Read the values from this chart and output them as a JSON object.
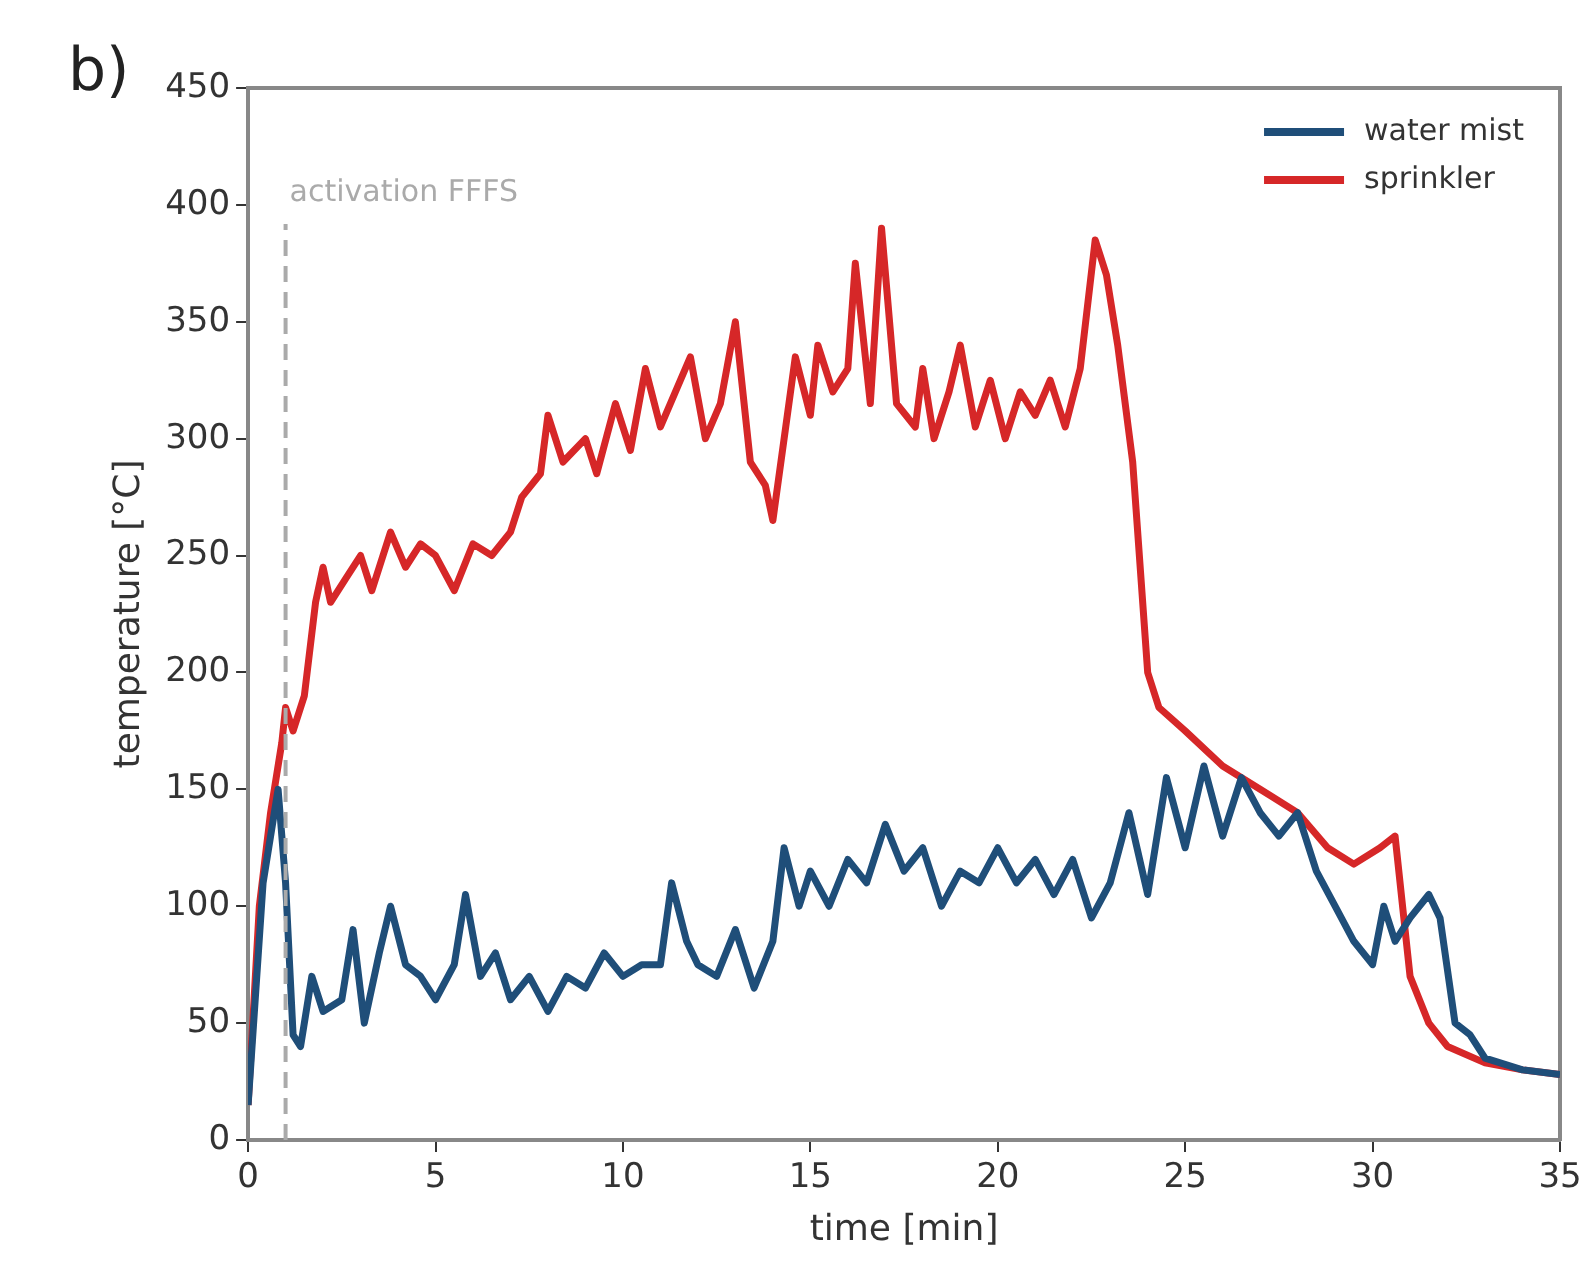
{
  "chart_data": {
    "type": "line",
    "xlabel": "time [min]",
    "ylabel": "temperature [°C]",
    "xlim": [
      0,
      35
    ],
    "xticks": [
      0,
      5,
      10,
      15,
      20,
      25,
      30,
      35
    ],
    "ylim": [
      0,
      450
    ],
    "yticks": [
      0,
      50,
      100,
      150,
      200,
      250,
      300,
      350,
      400,
      450
    ],
    "grid": false,
    "legend": "top right",
    "marker": "none",
    "line_style": "solid",
    "annotations": [
      "b)"
    ],
    "ref_lines": [
      {
        "axis": "x",
        "value": 1,
        "label": "activation FFFS",
        "color": "#aaaaaa",
        "line_style": "dashed"
      }
    ],
    "series": [
      {
        "name": "water mist",
        "color": "#1f4e79",
        "x": [
          0,
          0.4,
          0.8,
          1.0,
          1.2,
          1.4,
          1.7,
          2.0,
          2.5,
          2.8,
          3.1,
          3.5,
          3.8,
          4.2,
          4.6,
          5,
          5.5,
          5.8,
          6.2,
          6.6,
          7,
          7.5,
          8,
          8.5,
          9,
          9.5,
          10,
          10.5,
          11,
          11.3,
          11.7,
          12,
          12.5,
          13,
          13.5,
          14,
          14.3,
          14.7,
          15,
          15.5,
          16,
          16.5,
          17,
          17.5,
          18,
          18.5,
          19,
          19.5,
          20,
          20.5,
          21,
          21.5,
          22,
          22.5,
          23,
          23.5,
          24,
          24.5,
          25,
          25.5,
          26,
          26.5,
          27,
          27.5,
          28,
          28.5,
          29,
          29.5,
          30,
          30.3,
          30.6,
          31,
          31.5,
          31.8,
          32.2,
          32.6,
          33,
          34,
          35
        ],
        "values": [
          15,
          110,
          150,
          110,
          45,
          40,
          70,
          55,
          60,
          90,
          50,
          80,
          100,
          75,
          70,
          60,
          75,
          105,
          70,
          80,
          60,
          70,
          55,
          70,
          65,
          80,
          70,
          75,
          75,
          110,
          85,
          75,
          70,
          90,
          65,
          85,
          125,
          100,
          115,
          100,
          120,
          110,
          135,
          115,
          125,
          100,
          115,
          110,
          125,
          110,
          120,
          105,
          120,
          95,
          110,
          140,
          105,
          155,
          125,
          160,
          130,
          155,
          140,
          130,
          140,
          115,
          100,
          85,
          75,
          100,
          85,
          95,
          105,
          95,
          50,
          45,
          35,
          30,
          28
        ]
      },
      {
        "name": "sprinkler",
        "color": "#d62728",
        "x": [
          0,
          0.3,
          0.6,
          0.9,
          1.0,
          1.2,
          1.5,
          1.8,
          2.0,
          2.2,
          2.6,
          3,
          3.3,
          3.8,
          4.2,
          4.6,
          5,
          5.5,
          6,
          6.5,
          7,
          7.3,
          7.8,
          8,
          8.4,
          9,
          9.3,
          9.8,
          10.2,
          10.6,
          11,
          11.4,
          11.8,
          12.2,
          12.6,
          13,
          13.4,
          13.8,
          14,
          14.3,
          14.6,
          15,
          15.2,
          15.6,
          16,
          16.2,
          16.6,
          16.9,
          17.3,
          17.8,
          18,
          18.3,
          18.7,
          19,
          19.4,
          19.8,
          20.2,
          20.6,
          21,
          21.4,
          21.8,
          22.2,
          22.6,
          22.9,
          23.2,
          23.6,
          24,
          24.3,
          25,
          26,
          27,
          28,
          28.8,
          29.5,
          30.2,
          30.6,
          31,
          31.5,
          32,
          33,
          34,
          35
        ],
        "values": [
          15,
          100,
          140,
          170,
          185,
          175,
          190,
          230,
          245,
          230,
          240,
          250,
          235,
          260,
          245,
          255,
          250,
          235,
          255,
          250,
          260,
          275,
          285,
          310,
          290,
          300,
          285,
          315,
          295,
          330,
          305,
          320,
          335,
          300,
          315,
          350,
          290,
          280,
          265,
          300,
          335,
          310,
          340,
          320,
          330,
          375,
          315,
          390,
          315,
          305,
          330,
          300,
          320,
          340,
          305,
          325,
          300,
          320,
          310,
          325,
          305,
          330,
          385,
          370,
          340,
          290,
          200,
          185,
          175,
          160,
          150,
          140,
          125,
          118,
          125,
          130,
          70,
          50,
          40,
          33,
          30,
          28
        ]
      }
    ]
  }
}
